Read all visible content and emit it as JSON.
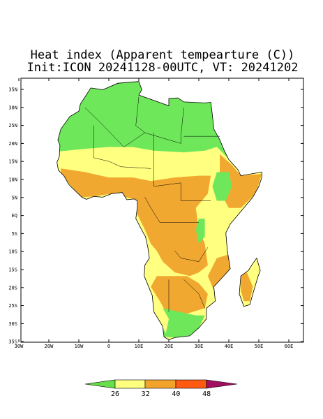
{
  "title": "Heat index (Apparent tempearture (C))",
  "subtitle": "Init:ICON 20241128-00UTC, VT: 20241202",
  "lat_labels": [
    "35N",
    "30N",
    "25N",
    "20N",
    "15N",
    "10N",
    "5N",
    "EQ",
    "5S",
    "10S",
    "15S",
    "20S",
    "25S",
    "30S",
    "35S"
  ],
  "lon_labels": [
    "30W",
    "20W",
    "10W",
    "0",
    "10E",
    "20E",
    "30E",
    "40E",
    "50E",
    "60E"
  ],
  "colorbar": {
    "ticks": [
      26,
      32,
      40,
      48
    ]
  }
}
